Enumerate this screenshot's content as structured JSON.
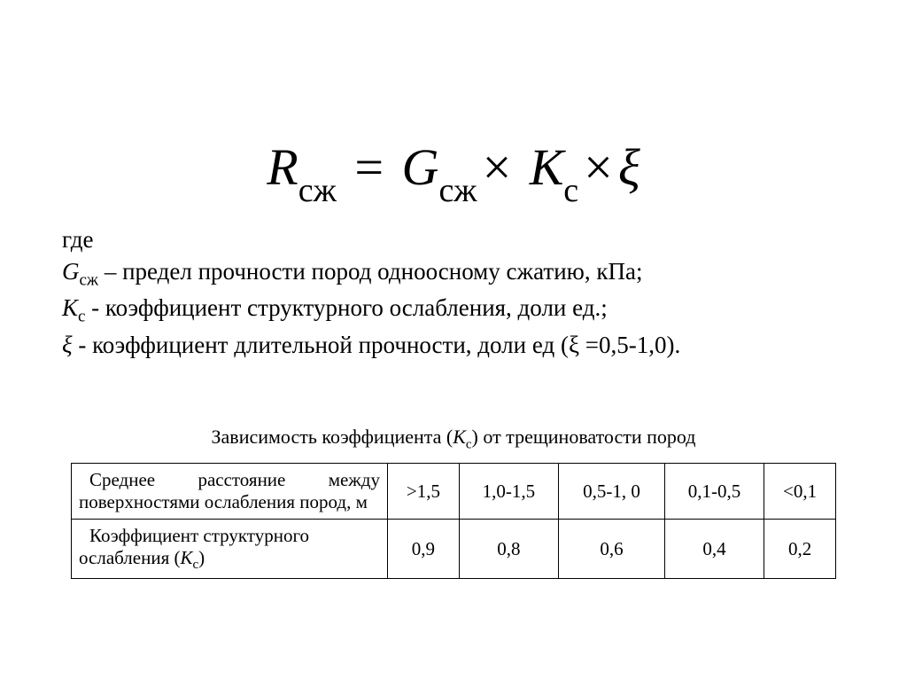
{
  "formula": {
    "R": "R",
    "R_sub": "сж",
    "eq": "=",
    "G": "G",
    "G_sub": "сж",
    "mul1": "×",
    "K": "К",
    "K_sub": "с",
    "mul2": "×",
    "xi": "ξ"
  },
  "where": {
    "heading": "где",
    "line1": {
      "sym": "G",
      "sub": "сж",
      "dash": " – ",
      "text": "предел прочности пород одноосному сжатию, кПа;"
    },
    "line2": {
      "sym": "К",
      "sub": "с",
      "sep": " - ",
      "text": "коэффициент структурного ослабления, доли ед.;"
    },
    "line3": {
      "sym": "ξ",
      "sep": " - ",
      "text": "коэффициент длительной прочности, доли ед (ξ =0,5-1,0)."
    }
  },
  "caption": {
    "prefix": "Зависимость коэффициента (",
    "sym": "К",
    "sub": "с",
    "suffix": ") от трещиноватости пород"
  },
  "table": {
    "row1": {
      "label_l1": "Среднее расстояние между",
      "label_l2": "поверхностями ослабления пород, м",
      "c1": ">1,5",
      "c2": "1,0-1,5",
      "c3": "0,5-1, 0",
      "c4": "0,1-0,5",
      "c5": "<0,1"
    },
    "row2": {
      "label_l1": "Коэффициент структурного",
      "label_l2_pre": "ослабления   (",
      "label_sym": "К",
      "label_sub": "с",
      "label_l2_post": ")",
      "c1": "0,9",
      "c2": "0,8",
      "c3": "0,6",
      "c4": "0,4",
      "c5": "0,2"
    }
  },
  "style": {
    "background": "#ffffff",
    "text_color": "#000000",
    "border_color": "#000000",
    "formula_fontsize": 58,
    "body_fontsize": 27,
    "caption_fontsize": 22,
    "table_fontsize": 21
  }
}
